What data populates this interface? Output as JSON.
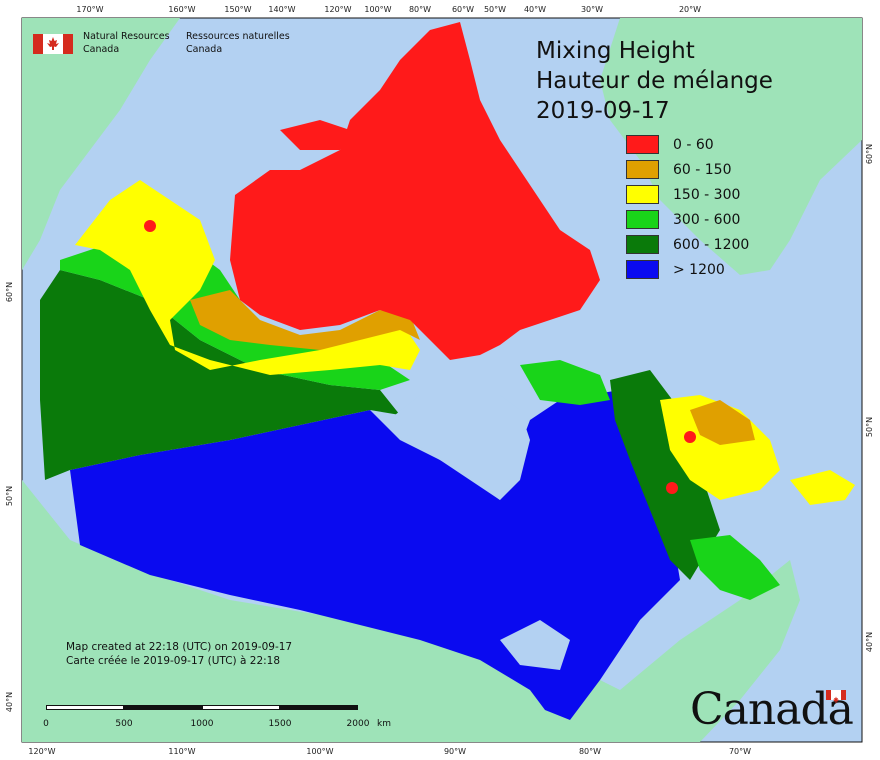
{
  "map": {
    "title_en": "Mixing Height",
    "title_fr": "Hauteur de mélange",
    "date": "2019-09-17",
    "agency": {
      "en_line1": "Natural Resources",
      "en_line2": "Canada",
      "fr_line1": "Ressources naturelles",
      "fr_line2": "Canada"
    },
    "credit_en": "Map created at 22:18 (UTC) on 2019-09-17",
    "credit_fr": "Carte créée le 2019-09-17 (UTC) à 22:18",
    "wordmark": "Canada",
    "legend": [
      {
        "label": "0 - 60",
        "color": "#ff1a1a"
      },
      {
        "label": "60 - 150",
        "color": "#e0a000"
      },
      {
        "label": "150 - 300",
        "color": "#ffff00"
      },
      {
        "label": "300 - 600",
        "color": "#19d419"
      },
      {
        "label": "600 - 1200",
        "color": "#0a7a0a"
      },
      {
        "label": "> 1200",
        "color": "#0a0af0"
      }
    ],
    "scale": {
      "labels": [
        "0",
        "500",
        "1000",
        "1500",
        "2000"
      ],
      "unit": "km"
    },
    "top_ticks": [
      "170°W",
      "160°W",
      "150°W",
      "140°W",
      "120°W",
      "100°W",
      "80°W",
      "60°W",
      "50°W",
      "40°W",
      "30°W",
      "20°W"
    ],
    "bottom_ticks": [
      "120°W",
      "110°W",
      "100°W",
      "90°W",
      "80°W",
      "70°W"
    ],
    "left_ticks": [
      "60°N",
      "50°N",
      "40°N"
    ],
    "right_ticks": [
      "60°N",
      "50°N",
      "40°N"
    ],
    "colors": {
      "ocean": "#b3d1f2",
      "land": "#9ee3b8",
      "lake": "#b3d1f2"
    }
  }
}
